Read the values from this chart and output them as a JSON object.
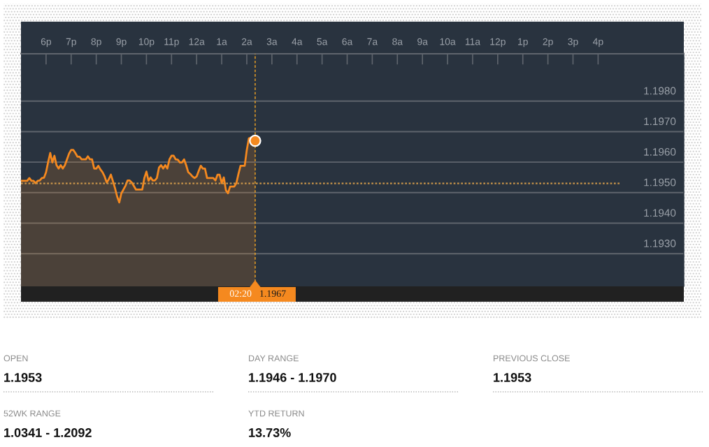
{
  "chart_data": {
    "type": "area",
    "categories": [
      null,
      null,
      null,
      null,
      null,
      null,
      null,
      null,
      null,
      null,
      null,
      null,
      "6p",
      null,
      null,
      null,
      null,
      null,
      null,
      null,
      null,
      null,
      null,
      null,
      "7p",
      null,
      null,
      null,
      null,
      null,
      null,
      null,
      null,
      null,
      null,
      null,
      "8p",
      null,
      null,
      null,
      null,
      null,
      null,
      null,
      null,
      null,
      null,
      null,
      "9p",
      null,
      null,
      null,
      null,
      null,
      null,
      null,
      null,
      null,
      null,
      null,
      "10p",
      null,
      null,
      null,
      null,
      null,
      null,
      null,
      null,
      null,
      null,
      null,
      "11p",
      null,
      null,
      null,
      null,
      null,
      null,
      null,
      null,
      null,
      null,
      null,
      "12a",
      null,
      null,
      null,
      null,
      null,
      null,
      null,
      null,
      null,
      null,
      null,
      "1a",
      null,
      null,
      null,
      null,
      null,
      null,
      null,
      null,
      null,
      null,
      null,
      "2a",
      null,
      null,
      null,
      null,
      null,
      null,
      null,
      null,
      null,
      null,
      null,
      "3a",
      null,
      null,
      null,
      null,
      null,
      null,
      null,
      null,
      null,
      null,
      null,
      "4a",
      null,
      null,
      null,
      null,
      null,
      null,
      null,
      null,
      null,
      null,
      null,
      "5a",
      null,
      null,
      null,
      null,
      null,
      null,
      null,
      null,
      null,
      null,
      null,
      "6a",
      null,
      null,
      null,
      null,
      null,
      null,
      null,
      null,
      null,
      null,
      null,
      "7a",
      null,
      null,
      null,
      null,
      null,
      null,
      null,
      null,
      null,
      null,
      null,
      "8a",
      null,
      null,
      null,
      null,
      null,
      null,
      null,
      null,
      null,
      null,
      null,
      "9a",
      null,
      null,
      null,
      null,
      null,
      null,
      null,
      null,
      null,
      null,
      null,
      "10a",
      null,
      null,
      null,
      null,
      null,
      null,
      null,
      null,
      null,
      null,
      null,
      "11a",
      null,
      null,
      null,
      null,
      null,
      null,
      null,
      null,
      null,
      null,
      null,
      "12p",
      null,
      null,
      null,
      null,
      null,
      null,
      null,
      null,
      null,
      null,
      null,
      "1p",
      null,
      null,
      null,
      null,
      null,
      null,
      null,
      null,
      null,
      null,
      null,
      "2p",
      null,
      null,
      null,
      null,
      null,
      null,
      null,
      null,
      null,
      null,
      null,
      "3p",
      null,
      null,
      null,
      null,
      null,
      null,
      null,
      null,
      null,
      null,
      null,
      "4p",
      null,
      null,
      null,
      null,
      null,
      null,
      null,
      null,
      null,
      null,
      null,
      null,
      null,
      null,
      null,
      null,
      null,
      null,
      null,
      null,
      null,
      null,
      null,
      null,
      null,
      null,
      null,
      null,
      null,
      null,
      null,
      null,
      null,
      null,
      null,
      null,
      null,
      null,
      null,
      null,
      null
    ],
    "series": [
      {
        "color": "#f5891f",
        "values": [
          1.19539,
          1.19539,
          1.19539,
          1.19539,
          1.19548,
          1.19539,
          1.19539,
          1.19531,
          1.19539,
          1.1954,
          1.19548,
          1.19549,
          1.19567,
          1.19601,
          1.1963,
          1.19599,
          1.19621,
          1.1959,
          1.19579,
          1.1959,
          1.19579,
          1.1959,
          1.19609,
          1.19628,
          1.1964,
          1.1964,
          1.1963,
          1.19618,
          1.19618,
          1.19609,
          1.19609,
          1.19609,
          1.19619,
          1.19609,
          1.19609,
          1.19579,
          1.19579,
          1.19588,
          1.19576,
          1.19567,
          1.19553,
          1.19533,
          1.19544,
          1.19559,
          1.19537,
          1.19514,
          1.19487,
          1.19468,
          1.19498,
          1.1951,
          1.19523,
          1.1954,
          1.1954,
          1.19533,
          1.19522,
          1.1951,
          1.1951,
          1.1951,
          1.1951,
          1.19548,
          1.19569,
          1.19539,
          1.1955,
          1.1954,
          1.1954,
          1.19548,
          1.19582,
          1.1959,
          1.19579,
          1.1959,
          1.19579,
          1.19609,
          1.19621,
          1.19621,
          1.19609,
          1.19608,
          1.19599,
          1.19599,
          1.19609,
          1.1959,
          1.19567,
          1.19561,
          1.19553,
          1.19548,
          1.19553,
          1.19571,
          1.19588,
          1.19579,
          1.19579,
          1.19548,
          1.19548,
          1.19548,
          1.19548,
          1.1954,
          1.19559,
          1.19559,
          1.19531,
          1.1955,
          1.19508,
          1.19498,
          1.1952,
          1.1952,
          1.1952,
          1.19531,
          1.19561,
          1.19588,
          1.19588,
          1.19588,
          1.1964,
          1.19678,
          1.1968,
          1.19675,
          1.1967,
          null,
          null,
          null,
          null,
          null,
          null,
          null,
          null,
          null,
          null,
          null,
          null,
          null,
          null,
          null,
          null,
          null,
          null,
          null,
          null,
          null,
          null,
          null,
          null,
          null,
          null,
          null,
          null,
          null,
          null,
          null,
          null,
          null,
          null,
          null,
          null,
          null,
          null,
          null,
          null,
          null,
          null,
          null,
          null,
          null,
          null,
          null,
          null,
          null,
          null,
          null,
          null,
          null,
          null,
          null,
          null,
          null,
          null,
          null,
          null,
          null,
          null,
          null,
          null,
          null,
          null,
          null,
          null,
          null,
          null,
          null,
          null,
          null,
          null,
          null,
          null,
          null,
          null,
          null,
          null,
          null,
          null,
          null,
          null,
          null,
          null,
          null,
          null,
          null,
          null,
          null,
          null,
          null,
          null,
          null,
          null,
          null,
          null,
          null,
          null,
          null,
          null,
          null,
          null,
          null,
          null,
          null,
          null,
          null,
          null,
          null,
          null,
          null,
          null,
          null,
          null,
          null,
          null,
          null,
          null,
          null,
          null,
          null,
          null,
          null,
          null,
          null,
          null,
          null,
          null,
          null,
          null,
          null,
          null,
          null,
          null,
          null,
          null,
          null,
          null,
          null,
          null,
          null,
          null,
          null,
          null,
          null,
          null,
          null,
          null,
          null,
          null,
          null,
          null,
          null,
          null,
          null,
          null,
          null,
          null,
          null,
          null,
          null,
          null,
          null,
          null,
          null,
          null,
          null,
          null,
          null,
          null,
          null,
          null,
          null,
          null,
          null,
          null,
          null,
          null,
          null,
          null,
          null,
          null,
          null,
          null,
          null,
          null,
          null,
          null,
          null,
          null,
          null,
          null,
          null,
          null,
          null,
          null,
          null,
          null,
          null,
          null,
          null,
          null,
          null
        ]
      },
      {
        "type": "scatter",
        "color": "#f5891f",
        "marker": "circle",
        "values": [
          null,
          null,
          null,
          null,
          null,
          null,
          null,
          null,
          null,
          null,
          null,
          null,
          null,
          null,
          null,
          null,
          null,
          null,
          null,
          null,
          null,
          null,
          null,
          null,
          null,
          null,
          null,
          null,
          null,
          null,
          null,
          null,
          null,
          null,
          null,
          null,
          null,
          null,
          null,
          null,
          null,
          null,
          null,
          null,
          null,
          null,
          null,
          null,
          null,
          null,
          null,
          null,
          null,
          null,
          null,
          null,
          null,
          null,
          null,
          null,
          null,
          null,
          null,
          null,
          null,
          null,
          null,
          null,
          null,
          null,
          null,
          null,
          null,
          null,
          null,
          null,
          null,
          null,
          null,
          null,
          null,
          null,
          null,
          null,
          null,
          null,
          null,
          null,
          null,
          null,
          null,
          null,
          null,
          null,
          null,
          null,
          null,
          null,
          null,
          null,
          null,
          null,
          null,
          null,
          null,
          null,
          null,
          null,
          null,
          null,
          null,
          null,
          1.1967,
          null,
          null,
          null,
          null,
          null,
          null,
          null,
          null,
          null,
          null,
          null,
          null,
          null,
          null,
          null,
          null,
          null,
          null,
          null,
          null,
          null,
          null,
          null,
          null,
          null,
          null,
          null,
          null,
          null,
          null,
          null,
          null,
          null,
          null,
          null,
          null,
          null,
          null,
          null,
          null,
          null,
          null,
          null,
          null,
          null,
          null,
          null,
          null,
          null,
          null,
          null,
          null,
          null,
          null,
          null,
          null,
          null,
          null,
          null,
          null,
          null,
          null,
          null,
          null,
          null,
          null,
          null,
          null,
          null,
          null,
          null,
          null,
          null,
          null,
          null,
          null,
          null,
          null,
          null,
          null,
          null,
          null,
          null,
          null,
          null,
          null,
          null,
          null,
          null,
          null,
          null,
          null,
          null,
          null,
          null,
          null,
          null,
          null,
          null,
          null,
          null,
          null,
          null,
          null,
          null,
          null,
          null,
          null,
          null,
          null,
          null,
          null,
          null,
          null,
          null,
          null,
          null,
          null,
          null,
          null,
          null,
          null,
          null,
          null,
          null,
          null,
          null,
          null,
          null,
          null,
          null,
          null,
          null,
          null,
          null,
          null,
          null,
          null,
          null,
          null,
          null,
          null,
          null,
          null,
          null,
          null,
          null,
          null,
          null,
          null,
          null,
          null,
          null,
          null,
          null,
          null,
          null,
          null,
          null,
          null,
          null,
          null,
          null,
          null,
          null,
          null,
          null,
          null,
          null,
          null,
          null,
          null,
          null,
          null,
          null,
          null,
          null,
          null,
          null,
          null,
          null,
          null,
          null,
          null,
          null,
          null,
          null,
          null,
          null,
          null,
          null,
          null,
          null,
          null,
          null,
          null,
          null,
          null,
          null,
          null,
          null,
          null,
          null,
          null,
          null
        ]
      }
    ],
    "ylim": [
      1.19193,
      1.19955
    ],
    "yticks": [
      {
        "value": 1.193,
        "label": "1.1930"
      },
      {
        "value": 1.194,
        "label": "1.1940"
      },
      {
        "value": 1.195,
        "label": "1.1950"
      },
      {
        "value": 1.196,
        "label": "1.1960"
      },
      {
        "value": 1.197,
        "label": "1.1970"
      },
      {
        "value": 1.198,
        "label": "1.1980"
      }
    ],
    "grid": "y",
    "ref_lines": [
      {
        "axis": "y",
        "value": 1.1953,
        "color": "#c9954a",
        "line_style": "dotted"
      }
    ],
    "annotations": [
      "02:20",
      "1.1967",
      "OPEN",
      "1.1953",
      "DAY RANGE",
      "1.1946 - 1.1970",
      "PREVIOUS CLOSE",
      "1.1953",
      "52WK RANGE",
      "1.0341 - 1.2092",
      "YTD RETURN",
      "13.73%"
    ]
  }
}
